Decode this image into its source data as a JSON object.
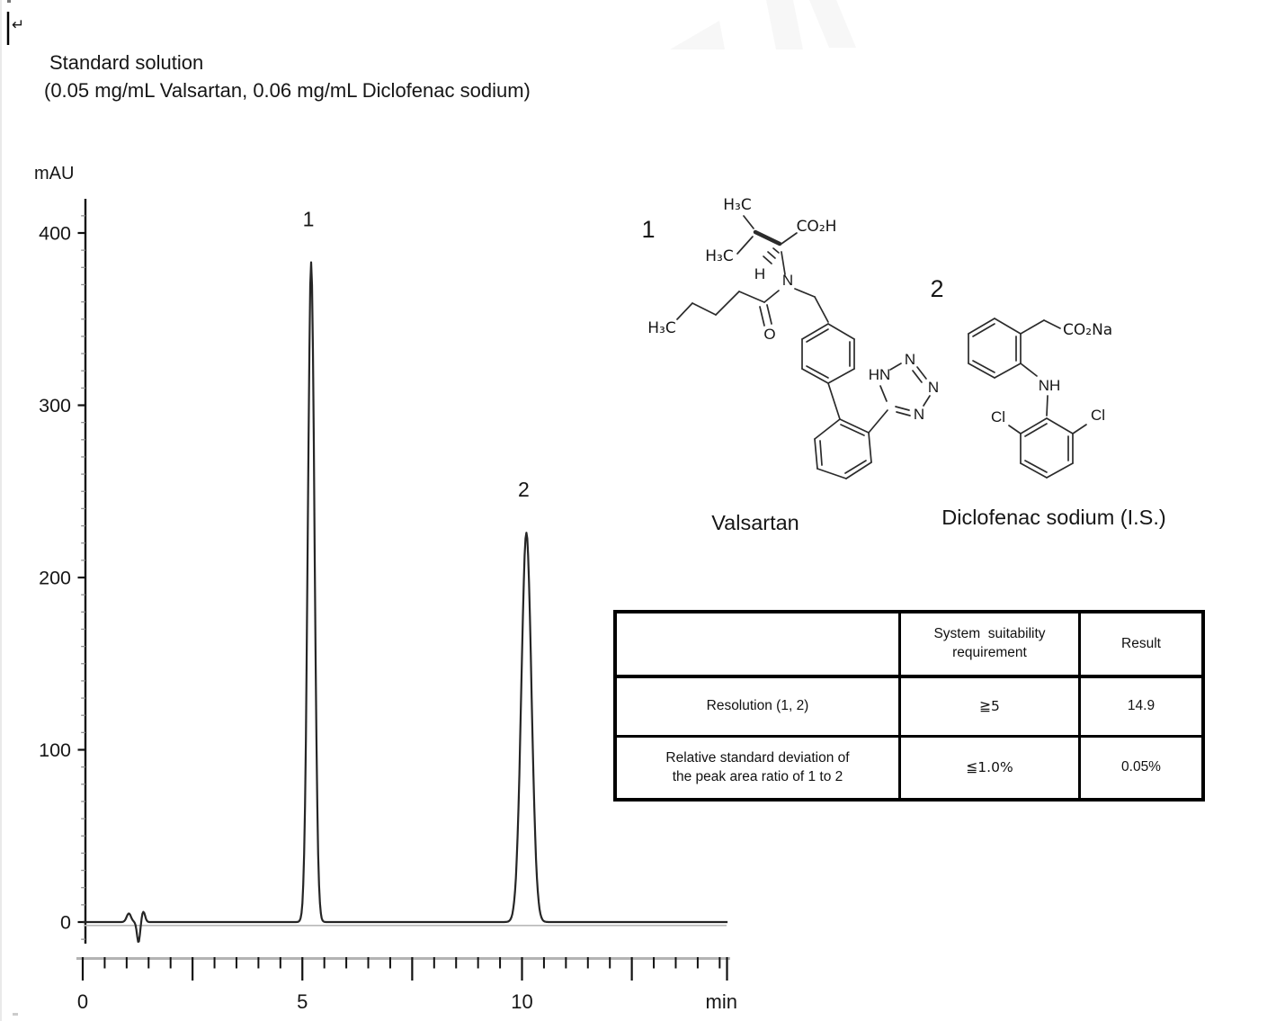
{
  "header": {
    "title": "Standard solution",
    "subtitle": "(0.05 mg/mL Valsartan, 0.06 mg/mL Diclofenac sodium)"
  },
  "window": {
    "cursor_mark": "↵"
  },
  "chart_data": {
    "type": "line",
    "title": "Standard solution",
    "subtitle": "(0.05 mg/mL Valsartan, 0.06 mg/mL Diclofenac sodium)",
    "ylabel": "mAU",
    "xlabel": "min",
    "xlim": [
      0,
      14.7
    ],
    "ylim": [
      -30,
      420
    ],
    "grid": false,
    "legend": null,
    "y_tick_labels": [
      {
        "value": 0,
        "label": "0"
      },
      {
        "value": 100,
        "label": "100"
      },
      {
        "value": 200,
        "label": "200"
      },
      {
        "value": 300,
        "label": "300"
      },
      {
        "value": 400,
        "label": "400"
      }
    ],
    "y_minor_tick_step": 10,
    "x_tick_labels": [
      {
        "value": 0,
        "label": "0"
      },
      {
        "value": 5,
        "label": "5"
      },
      {
        "value": 10,
        "label": "10"
      }
    ],
    "x_minor_tick_step": 0.5,
    "x_major_tick_step": 2.5,
    "series": [
      {
        "name": "chromatogram",
        "baseline_mAU": 0,
        "peaks": [
          {
            "label": "1",
            "rt_min": 5.2,
            "height_mAU": 383,
            "sigma_min": 0.075,
            "compound": "Valsartan"
          },
          {
            "label": "2",
            "rt_min": 10.1,
            "height_mAU": 226,
            "sigma_min": 0.115,
            "compound": "Diclofenac sodium (I.S.)"
          }
        ],
        "artifacts": [
          {
            "rt_min": 1.05,
            "amp_mAU": 5,
            "sigma_min": 0.05
          },
          {
            "rt_min": 1.27,
            "amp_mAU": -12,
            "sigma_min": 0.035
          },
          {
            "rt_min": 1.38,
            "amp_mAU": 6,
            "sigma_min": 0.04
          }
        ]
      }
    ]
  },
  "structures": {
    "valsartan": {
      "number": "1",
      "name": "Valsartan",
      "labels": {
        "h3c_top": "H₃C",
        "h3c_mid": "H₃C",
        "h3c_chain": "H₃C",
        "co2h": "CO₂H",
        "h": "H",
        "n": "N",
        "o": "O",
        "hn": "HN",
        "n_top": "N",
        "n_right": "N",
        "n_bottom": "N"
      }
    },
    "diclofenac": {
      "number": "2",
      "name": "Diclofenac sodium (I.S.)",
      "labels": {
        "co2na": "CO₂Na",
        "nh": "NH",
        "cl_left": "Cl",
        "cl_right": "Cl"
      }
    }
  },
  "table": {
    "header": {
      "col1": "",
      "col2_line1": "System  suitability",
      "col2_line2": "requirement",
      "col3": "Result"
    },
    "rows": [
      {
        "label_line1": "Resolution (1, 2)",
        "label_line2": "",
        "requirement": "≧5",
        "result": "14.9"
      },
      {
        "label_line1": "Relative standard deviation of",
        "label_line2": "the peak area ratio of 1 to 2",
        "requirement": "≦1.0%",
        "result": "0.05%"
      }
    ]
  }
}
